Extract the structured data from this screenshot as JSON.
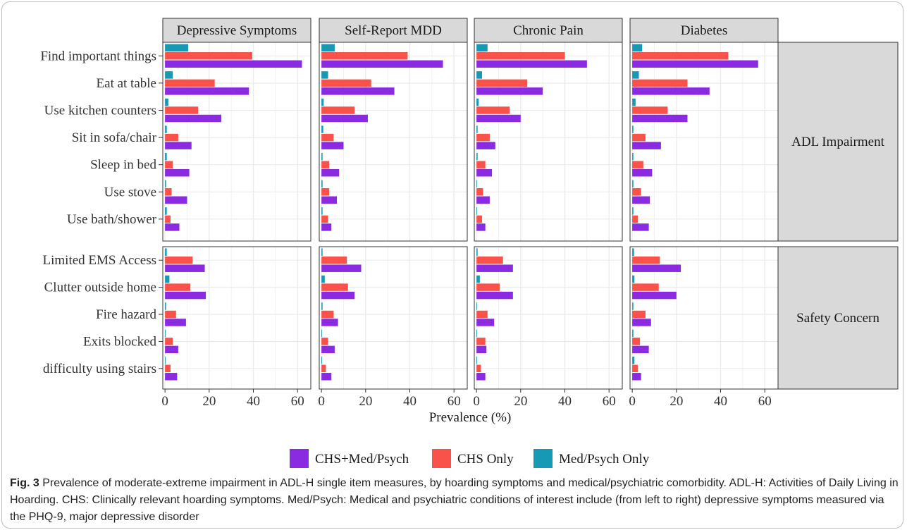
{
  "chart_data": {
    "type": "bar",
    "orientation": "horizontal",
    "facet_columns": [
      "Depressive Symptoms",
      "Self-Report MDD",
      "Chronic Pain",
      "Diabetes"
    ],
    "facet_rows": [
      {
        "label": "ADL Impairment",
        "items": [
          "Find important things",
          "Eat at table",
          "Use kitchen counters",
          "Sit in sofa/chair",
          "Sleep in bed",
          "Use stove",
          "Use bath/shower"
        ]
      },
      {
        "label": "Safety Concern",
        "items": [
          "Limited EMS Access",
          "Clutter outside home",
          "Fire hazard",
          "Exits blocked",
          "difficulty using stairs"
        ]
      }
    ],
    "series_names": [
      "CHS+Med/Psych",
      "CHS Only",
      "Med/Psych Only"
    ],
    "series_colors": [
      "#8a2be2",
      "#f8524a",
      "#1599b5"
    ],
    "xlabel": "Prevalence (%)",
    "xticks": [
      "0",
      "20",
      "40",
      "60"
    ],
    "xlim": [
      -1,
      66
    ],
    "grid": true,
    "legend_position": "bottom",
    "values": {
      "Depressive Symptoms": {
        "Find important things": [
          62,
          39.5,
          10.5
        ],
        "Eat at table": [
          38,
          22.5,
          3.5
        ],
        "Use kitchen counters": [
          25.5,
          15,
          1.5
        ],
        "Sit in sofa/chair": [
          12,
          6,
          0.8
        ],
        "Sleep in bed": [
          11,
          3.5,
          0.8
        ],
        "Use stove": [
          10,
          3,
          0.5
        ],
        "Use bath/shower": [
          6.5,
          2.5,
          0.8
        ],
        "Limited EMS Access": [
          18,
          12.5,
          0.8
        ],
        "Clutter outside home": [
          18.5,
          11.5,
          2
        ],
        "Fire hazard": [
          9.5,
          5,
          0.5
        ],
        "Exits blocked": [
          6,
          3.5,
          0.3
        ],
        "difficulty using stairs": [
          5.5,
          2.5,
          0.3
        ]
      },
      "Self-Report MDD": {
        "Find important things": [
          55,
          39,
          6
        ],
        "Eat at table": [
          33,
          22.5,
          3
        ],
        "Use kitchen counters": [
          21,
          15,
          1
        ],
        "Sit in sofa/chair": [
          10,
          5.5,
          0.8
        ],
        "Sleep in bed": [
          8,
          3.5,
          0.5
        ],
        "Use stove": [
          7,
          3.5,
          0.5
        ],
        "Use bath/shower": [
          4.5,
          3,
          0.5
        ],
        "Limited EMS Access": [
          18,
          11.5,
          0.5
        ],
        "Clutter outside home": [
          15,
          12,
          1.5
        ],
        "Fire hazard": [
          7.5,
          5.5,
          0.5
        ],
        "Exits blocked": [
          6,
          3,
          0.3
        ],
        "difficulty using stairs": [
          4.5,
          2,
          0.3
        ]
      },
      "Chronic Pain": {
        "Find important things": [
          50,
          40,
          5
        ],
        "Eat at table": [
          30,
          23,
          2.5
        ],
        "Use kitchen counters": [
          20,
          15,
          1
        ],
        "Sit in sofa/chair": [
          8.5,
          6,
          0.5
        ],
        "Sleep in bed": [
          7,
          4,
          0.5
        ],
        "Use stove": [
          6,
          3,
          0.3
        ],
        "Use bath/shower": [
          4,
          2.5,
          0.3
        ],
        "Limited EMS Access": [
          16.5,
          12,
          0.5
        ],
        "Clutter outside home": [
          16.5,
          10.5,
          1.5
        ],
        "Fire hazard": [
          8,
          5,
          0.3
        ],
        "Exits blocked": [
          4.5,
          4,
          0.3
        ],
        "difficulty using stairs": [
          4,
          2,
          0.3
        ]
      },
      "Diabetes": {
        "Find important things": [
          57,
          43.5,
          4.5
        ],
        "Eat at table": [
          35,
          25,
          3
        ],
        "Use kitchen counters": [
          25,
          16,
          1.5
        ],
        "Sit in sofa/chair": [
          13,
          6,
          0.5
        ],
        "Sleep in bed": [
          9,
          5,
          0.5
        ],
        "Use stove": [
          8,
          4,
          0.5
        ],
        "Use bath/shower": [
          7.5,
          2.5,
          0.5
        ],
        "Limited EMS Access": [
          22,
          12.5,
          0.8
        ],
        "Clutter outside home": [
          20,
          12,
          1
        ],
        "Fire hazard": [
          8.5,
          6,
          0.5
        ],
        "Exits blocked": [
          7.5,
          3.5,
          0.5
        ],
        "difficulty using stairs": [
          4,
          2.5,
          1
        ]
      }
    }
  },
  "caption": {
    "label": "Fig. 3",
    "text": "  Prevalence of moderate-extreme impairment in ADL-H single item measures, by hoarding symptoms and medical/psychiatric comorbidity. ADL-H: Activities of Daily Living in Hoarding. CHS: Clinically relevant hoarding symptoms. Med/Psych: Medical and psychiatric conditions of interest include (from left to right) depressive symptoms measured via the PHQ-9, major depressive disorder"
  }
}
